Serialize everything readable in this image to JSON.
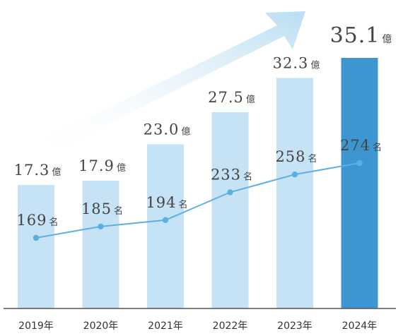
{
  "chart_data": {
    "type": "bar",
    "categories": [
      "2019年",
      "2020年",
      "2021年",
      "2022年",
      "2023年",
      "2024年"
    ],
    "series": [
      {
        "unit": "億",
        "values": [
          17.3,
          17.9,
          23.0,
          27.5,
          32.3,
          35.1
        ],
        "labels": [
          "17.3",
          "17.9",
          "23.0",
          "27.5",
          "32.3",
          "35.1"
        ]
      },
      {
        "unit": "名",
        "values": [
          169,
          185,
          194,
          233,
          258,
          274
        ],
        "labels": [
          "169",
          "185",
          "194",
          "233",
          "258",
          "274"
        ]
      }
    ],
    "ylim": [
      0,
      36
    ],
    "grid": false,
    "highlight_index": 5,
    "colors": {
      "bar": "#c6e3f6",
      "bar_highlight": "#3d96cf",
      "line": "#5bb0e3",
      "axis": "#555555",
      "arrow": "#b9ddf2"
    },
    "trend_arrow": true
  }
}
